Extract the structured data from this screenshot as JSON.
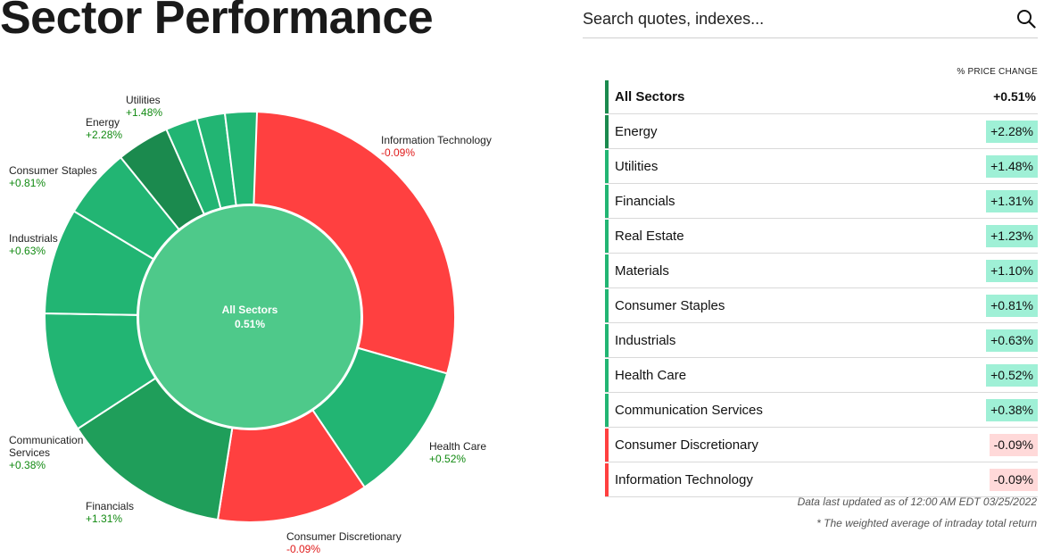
{
  "page": {
    "title": "Sector Performance",
    "search_placeholder": "Search quotes, indexes..."
  },
  "colors": {
    "positive_strong": "#1b8a4e",
    "positive": "#22b573",
    "positive_light": "#4ec98a",
    "negative": "#ff4040",
    "positive_badge": "#9ff0d6",
    "negative_badge": "#ffd9d9",
    "positive_text": "#128a12",
    "negative_text": "#e01b1b"
  },
  "chart_data": {
    "type": "pie",
    "center_label": "All Sectors",
    "center_value": "0.51%",
    "segments": [
      {
        "name": "Information Technology",
        "change": -0.09,
        "label_value": "-0.09%"
      },
      {
        "name": "Health Care",
        "change": 0.52,
        "label_value": "+0.52%"
      },
      {
        "name": "Consumer Discretionary",
        "change": -0.09,
        "label_value": "-0.09%"
      },
      {
        "name": "Financials",
        "change": 1.31,
        "label_value": "+1.31%"
      },
      {
        "name": "Communication Services",
        "change": 0.38,
        "label_value": "+0.38%"
      },
      {
        "name": "Industrials",
        "change": 0.63,
        "label_value": "+0.63%"
      },
      {
        "name": "Consumer Staples",
        "change": 0.81,
        "label_value": "+0.81%"
      },
      {
        "name": "Energy",
        "change": 2.28,
        "label_value": "+2.28%"
      },
      {
        "name": "Utilities",
        "change": 1.48,
        "label_value": "+1.48%"
      },
      {
        "name": "",
        "change": 1.1,
        "label_value": ""
      },
      {
        "name": "",
        "change": 1.23,
        "label_value": ""
      }
    ]
  },
  "table": {
    "header": "% PRICE CHANGE",
    "rows": [
      {
        "name": "All Sectors",
        "value": "+0.51%",
        "sign": "all"
      },
      {
        "name": "Energy",
        "value": "+2.28%",
        "sign": "pos"
      },
      {
        "name": "Utilities",
        "value": "+1.48%",
        "sign": "pos"
      },
      {
        "name": "Financials",
        "value": "+1.31%",
        "sign": "pos"
      },
      {
        "name": "Real Estate",
        "value": "+1.23%",
        "sign": "pos"
      },
      {
        "name": "Materials",
        "value": "+1.10%",
        "sign": "pos"
      },
      {
        "name": "Consumer Staples",
        "value": "+0.81%",
        "sign": "pos"
      },
      {
        "name": "Industrials",
        "value": "+0.63%",
        "sign": "pos"
      },
      {
        "name": "Health Care",
        "value": "+0.52%",
        "sign": "pos"
      },
      {
        "name": "Communication Services",
        "value": "+0.38%",
        "sign": "pos"
      },
      {
        "name": "Consumer Discretionary",
        "value": "-0.09%",
        "sign": "neg"
      },
      {
        "name": "Information Technology",
        "value": "-0.09%",
        "sign": "neg"
      }
    ],
    "footnote_updated": "Data last updated as of 12:00 AM EDT 03/25/2022",
    "footnote_weighted": "* The weighted average of intraday total return"
  }
}
